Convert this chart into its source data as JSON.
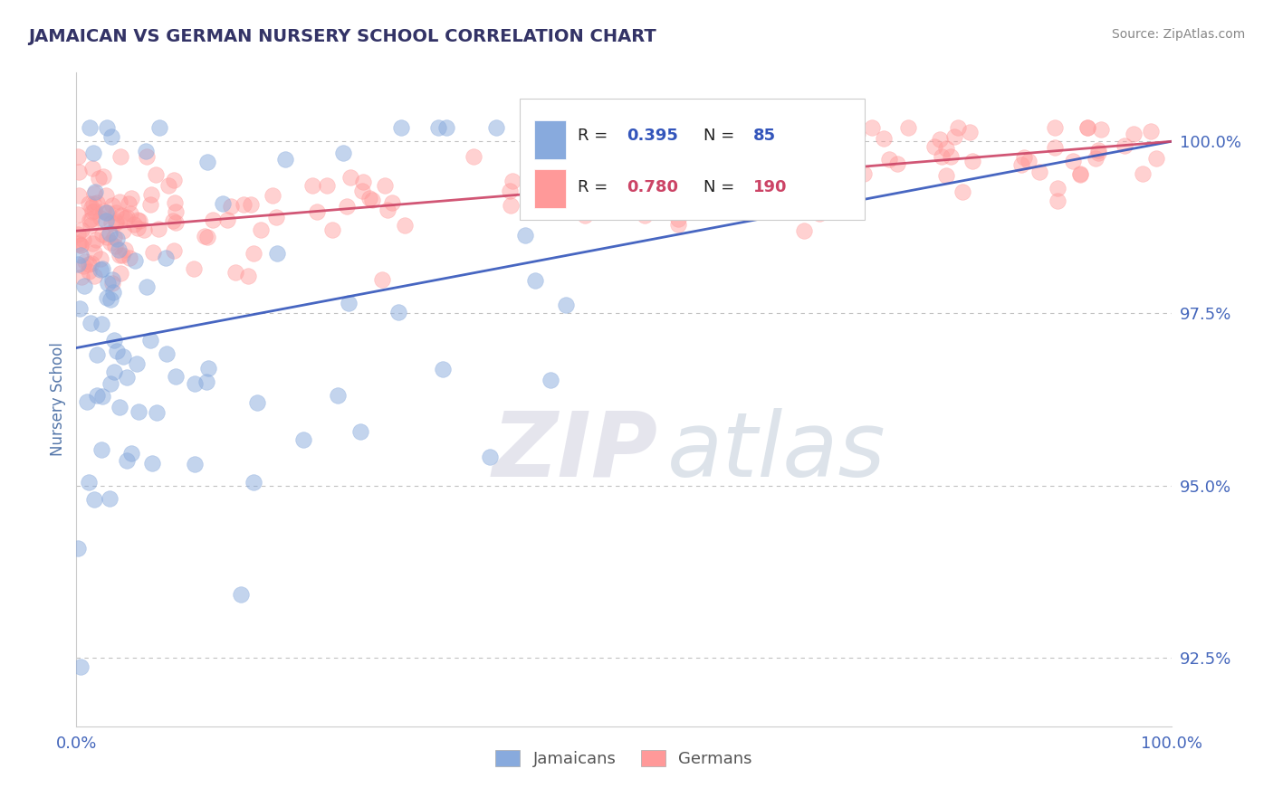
{
  "title": "JAMAICAN VS GERMAN NURSERY SCHOOL CORRELATION CHART",
  "source_text": "Source: ZipAtlas.com",
  "ylabel": "Nursery School",
  "xlim": [
    0.0,
    100.0
  ],
  "ylim": [
    91.5,
    101.0
  ],
  "yticks": [
    92.5,
    95.0,
    97.5,
    100.0
  ],
  "jamaican_R": 0.395,
  "jamaican_N": 85,
  "german_R": 0.78,
  "german_N": 190,
  "jamaican_color": "#88AADD",
  "german_color": "#FF9999",
  "trend_jamaican_color": "#3355BB",
  "trend_german_color": "#CC4466",
  "watermark_zip": "ZIP",
  "watermark_atlas": "atlas",
  "watermark_color_zip": "#CCCCDD",
  "watermark_color_atlas": "#AABBCC",
  "background_color": "#FFFFFF",
  "grid_color": "#BBBBBB",
  "title_color": "#333366",
  "axis_label_color": "#5577AA",
  "tick_label_color": "#4466BB",
  "legend_jamaican_label": "Jamaicans",
  "legend_german_label": "Germans",
  "legend_R_color": "#3355BB",
  "legend_N_color": "#3355BB",
  "legend_german_R_color": "#CC4466",
  "legend_german_N_color": "#CC4466"
}
